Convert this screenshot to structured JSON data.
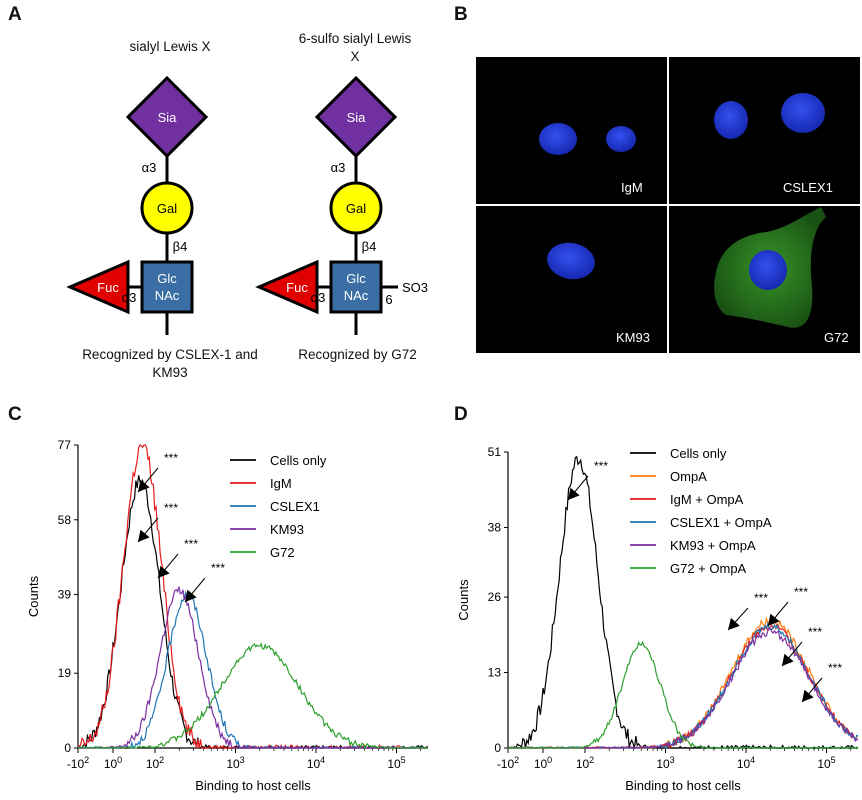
{
  "panels": {
    "A": {
      "letter": "A",
      "structures": [
        {
          "title": "sialyl Lewis X",
          "sia": "Sia",
          "gal": "Gal",
          "glc_line1": "Glc",
          "glc_line2": "NAc",
          "fuc": "Fuc",
          "link_sia_gal": "α3",
          "link_gal_glc": "β4",
          "link_fuc_glc": "α3",
          "sulfo": "",
          "sulfo_pos": "",
          "recognized": "Recognized by CSLEX-1 and KM93"
        },
        {
          "title": "6-sulfo sialyl Lewis X",
          "sia": "Sia",
          "gal": "Gal",
          "glc_line1": "Glc",
          "glc_line2": "NAc",
          "fuc": "Fuc",
          "link_sia_gal": "α3",
          "link_gal_glc": "β4",
          "link_fuc_glc": "α3",
          "sulfo": "SO3",
          "sulfo_pos": "6",
          "recognized": "Recognized by G72"
        }
      ],
      "colors": {
        "sia": "#7030a0",
        "gal": "#ffff00",
        "glc": "#3a6ea5",
        "fuc": "#e00000"
      }
    },
    "B": {
      "letter": "B",
      "images": [
        {
          "label": "IgM"
        },
        {
          "label": "CSLEX1"
        },
        {
          "label": "KM93"
        },
        {
          "label": "G72"
        }
      ],
      "colors": {
        "nucleus": "#1f3cd8",
        "stain": "#3aa82a"
      }
    },
    "C": {
      "letter": "C"
    },
    "D": {
      "letter": "D"
    }
  },
  "chart_data": [
    {
      "type": "line",
      "panel": "C",
      "xlabel": "Binding to host cells",
      "ylabel": "Counts",
      "x_ticks": [
        "-10^2",
        "10^0",
        "10^2",
        "10^3",
        "10^4",
        "10^5"
      ],
      "y_ticks": [
        0,
        19,
        39,
        58,
        77
      ],
      "ylim": [
        0,
        77
      ],
      "x_scale": "biexponential",
      "legend_position": "top-right",
      "series": [
        {
          "name": "Cells only",
          "color": "#000000",
          "peak_x": 20,
          "peak_y": 68
        },
        {
          "name": "IgM",
          "color": "#e41a1c",
          "peak_x": 25,
          "peak_y": 77
        },
        {
          "name": "CSLEX1",
          "color": "#1f77b4",
          "peak_x": 250,
          "peak_y": 39
        },
        {
          "name": "KM93",
          "color": "#7b2fa0",
          "peak_x": 200,
          "peak_y": 40
        },
        {
          "name": "G72",
          "color": "#2ca02c",
          "peak_x": 2000,
          "peak_y": 26
        }
      ],
      "annotations": [
        "***",
        "***",
        "***",
        "***"
      ]
    },
    {
      "type": "line",
      "panel": "D",
      "xlabel": "Binding to host cells",
      "ylabel": "Counts",
      "x_ticks": [
        "-10^2",
        "10^0",
        "10^2",
        "10^3",
        "10^4",
        "10^5"
      ],
      "y_ticks": [
        0,
        13,
        26,
        38,
        51
      ],
      "ylim": [
        0,
        51
      ],
      "x_scale": "biexponential",
      "legend_position": "top-right",
      "series": [
        {
          "name": "Cells only",
          "color": "#000000",
          "peak_x": 50,
          "peak_y": 50
        },
        {
          "name": "OmpA",
          "color": "#ff7f0e",
          "peak_x": 20000,
          "peak_y": 22
        },
        {
          "name": "IgM + OmpA",
          "color": "#e41a1c",
          "peak_x": 20000,
          "peak_y": 21
        },
        {
          "name": "CSLEX1 + OmpA",
          "color": "#1f77b4",
          "peak_x": 20000,
          "peak_y": 21
        },
        {
          "name": "KM93 + OmpA",
          "color": "#7b2fa0",
          "peak_x": 20000,
          "peak_y": 20
        },
        {
          "name": "G72 + OmpA",
          "color": "#2ca02c",
          "peak_x": 500,
          "peak_y": 18
        }
      ],
      "annotations": [
        "***",
        "***",
        "***",
        "***",
        "***"
      ]
    }
  ]
}
